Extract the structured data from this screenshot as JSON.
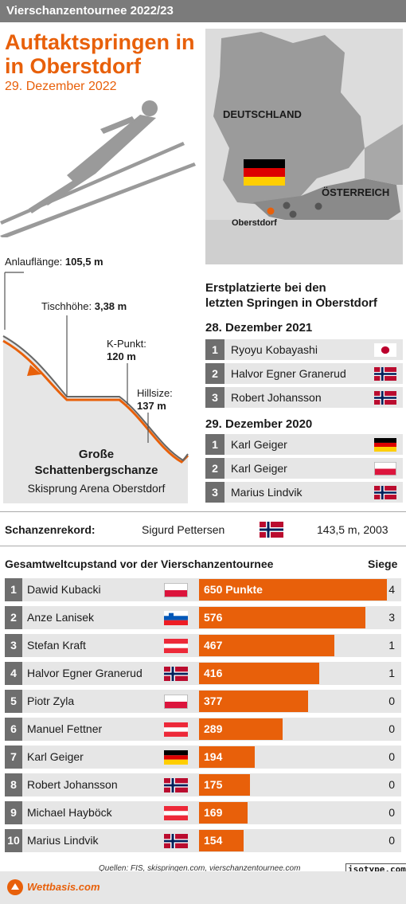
{
  "header": {
    "series": "Vierschanzentournee 2022/23"
  },
  "title": {
    "line1": "Auftaktspringen in",
    "line2": "in Oberstdorf",
    "date": "29. Dezember 2022"
  },
  "map": {
    "country1": "DEUTSCHLAND",
    "country2": "ÖSTERREICH",
    "city": "Oberstdorf"
  },
  "hill": {
    "inrun_label": "Anlauflänge:",
    "inrun_value": "105,5 m",
    "table_label": "Tischhöhe:",
    "table_value": "3,38 m",
    "k_label": "K-Punkt:",
    "k_value": "120 m",
    "hs_label": "Hillsize:",
    "hs_value": "137 m",
    "name1": "Große",
    "name2": "Schattenbergschanze",
    "arena": "Skisprung Arena Oberstdorf"
  },
  "winners": {
    "heading1": "Erstplatzierte bei den",
    "heading2": "letzten Springen in Oberstdorf",
    "group1": {
      "date": "28. Dezember 2021",
      "rows": [
        {
          "rank": "1",
          "name": "Ryoyu Kobayashi",
          "flag": "japan"
        },
        {
          "rank": "2",
          "name": "Halvor Egner Granerud",
          "flag": "norway"
        },
        {
          "rank": "3",
          "name": "Robert Johansson",
          "flag": "norway"
        }
      ]
    },
    "group2": {
      "date": "29. Dezember 2020",
      "rows": [
        {
          "rank": "1",
          "name": "Karl Geiger",
          "flag": "germany"
        },
        {
          "rank": "2",
          "name": "Karl Geiger",
          "flag": "poland"
        },
        {
          "rank": "3",
          "name": "Marius Lindvik",
          "flag": "norway"
        }
      ]
    }
  },
  "record": {
    "label": "Schanzenrekord:",
    "name": "Sigurd Pettersen",
    "flag": "norway",
    "value": "143,5 m, 2003"
  },
  "standings": {
    "heading": "Gesamtweltcupstand vor der Vierschanzentournee",
    "wins_heading": "Siege",
    "max_points": 650,
    "rows": [
      {
        "rank": "1",
        "name": "Dawid Kubacki",
        "flag": "poland",
        "points": 650,
        "points_label": "650 Punkte",
        "wins": "4"
      },
      {
        "rank": "2",
        "name": "Anze Lanisek",
        "flag": "slovenia",
        "points": 576,
        "points_label": "576",
        "wins": "3"
      },
      {
        "rank": "3",
        "name": "Stefan Kraft",
        "flag": "austria",
        "points": 467,
        "points_label": "467",
        "wins": "1"
      },
      {
        "rank": "4",
        "name": "Halvor Egner Granerud",
        "flag": "norway",
        "points": 416,
        "points_label": "416",
        "wins": "1"
      },
      {
        "rank": "5",
        "name": "Piotr Zyla",
        "flag": "poland",
        "points": 377,
        "points_label": "377",
        "wins": "0"
      },
      {
        "rank": "6",
        "name": "Manuel Fettner",
        "flag": "austria",
        "points": 289,
        "points_label": "289",
        "wins": "0"
      },
      {
        "rank": "7",
        "name": "Karl Geiger",
        "flag": "germany",
        "points": 194,
        "points_label": "194",
        "wins": "0"
      },
      {
        "rank": "8",
        "name": "Robert Johansson",
        "flag": "norway",
        "points": 175,
        "points_label": "175",
        "wins": "0"
      },
      {
        "rank": "9",
        "name": "Michael Hayböck",
        "flag": "austria",
        "points": 169,
        "points_label": "169",
        "wins": "0"
      },
      {
        "rank": "10",
        "name": "Marius Lindvik",
        "flag": "norway",
        "points": 154,
        "points_label": "154",
        "wins": "0"
      }
    ]
  },
  "footer": {
    "sources": "Quellen: FIS, skispringen.com, vierschanzentournee.com",
    "credit": "isotype.com",
    "brand": "Wettbasis.com"
  },
  "colors": {
    "accent": "#e8600a",
    "bar_bg": "#e6e6e6",
    "rank_bg": "#6e6e6e",
    "header_bg": "#7b7b7b"
  }
}
